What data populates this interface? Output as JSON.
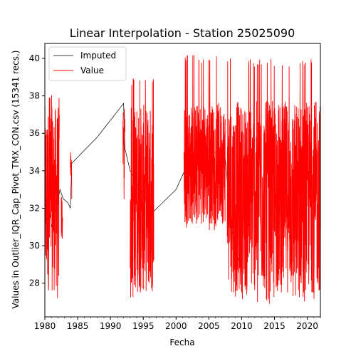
{
  "chart_data": {
    "type": "line",
    "title": "Linear Interpolation - Station 25025090",
    "xlabel": "Fecha",
    "ylabel": "Values in Outlier_IQR_Cap_Pivot_TMX_CON.csv (15341 recs.)",
    "xlim": [
      1980,
      2022
    ],
    "ylim": [
      26.2,
      40.8
    ],
    "xticks": [
      1980,
      1985,
      1990,
      1995,
      2000,
      2005,
      2010,
      2015,
      2020
    ],
    "xtick_labels": [
      "1980",
      "1985",
      "1990",
      "1995",
      "2000",
      "2005",
      "2010",
      "2015",
      "2020"
    ],
    "yticks": [
      28,
      30,
      32,
      34,
      36,
      38,
      40
    ],
    "ytick_labels": [
      "28",
      "30",
      "32",
      "34",
      "36",
      "38",
      "40"
    ],
    "grid": false,
    "legend_position": "upper left",
    "series": [
      {
        "name": "Imputed",
        "color": "#000000",
        "style": "thin line connecting gaps",
        "x": [
          1980.0,
          1980.5,
          1981.0,
          1981.8,
          1982.3,
          1982.8,
          1983.5,
          1983.9,
          1984.1,
          1988.0,
          1992.0,
          1992.2,
          1993.0,
          1996.5,
          2000.0,
          2001.3,
          2006.0,
          2007.4,
          2008.5,
          2009.5
        ],
        "y": [
          31.5,
          33.0,
          31.0,
          32.0,
          33.0,
          32.5,
          32.3,
          32.0,
          34.4,
          35.8,
          37.6,
          35.2,
          34.0,
          31.8,
          33.0,
          34.0,
          35.0,
          35.0,
          30.8,
          29.2
        ]
      },
      {
        "name": "Value",
        "color": "#ff0000",
        "style": "dense observed segments",
        "segments": [
          {
            "x_start": 1980.0,
            "x_end": 1982.2,
            "y_min": 27.0,
            "y_max": 38.2,
            "mean": 32.5
          },
          {
            "x_start": 1982.5,
            "x_end": 1982.7,
            "y_min": 27.0,
            "y_max": 33.0,
            "mean": 31.5
          },
          {
            "x_start": 1983.9,
            "x_end": 1984.1,
            "y_min": 32.0,
            "y_max": 35.2,
            "mean": 34.4
          },
          {
            "x_start": 1991.9,
            "x_end": 1992.2,
            "y_min": 32.4,
            "y_max": 37.6,
            "mean": 35.5
          },
          {
            "x_start": 1993.0,
            "x_end": 1996.6,
            "y_min": 26.9,
            "y_max": 39.0,
            "mean": 32.5
          },
          {
            "x_start": 2001.2,
            "x_end": 2007.5,
            "y_min": 30.8,
            "y_max": 40.2,
            "mean": 34.4
          },
          {
            "x_start": 2007.8,
            "x_end": 2022.0,
            "y_min": 26.9,
            "y_max": 40.0,
            "mean": 32.6
          }
        ]
      }
    ]
  }
}
